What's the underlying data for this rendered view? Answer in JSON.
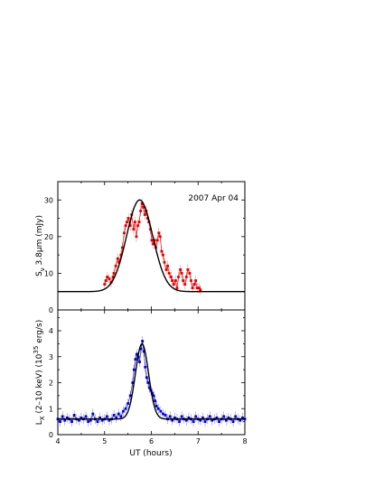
{
  "chart_data": [
    {
      "type": "line",
      "annotation": "2007 Apr 04",
      "ylabel_main": "S",
      "ylabel_sub": "ν",
      "ylabel_rest": " 3.8μm (mJy)",
      "xlabel": "",
      "xlim": [
        4,
        8
      ],
      "ylim": [
        0,
        35
      ],
      "y_ticks": [
        "0",
        "10",
        "20",
        "30"
      ],
      "grid": false,
      "series": [
        {
          "color": "#e00000",
          "marker": "square",
          "x": [
            5.0,
            5.03,
            5.06,
            5.1,
            5.14,
            5.18,
            5.2,
            5.24,
            5.28,
            5.31,
            5.35,
            5.38,
            5.42,
            5.45,
            5.48,
            5.51,
            5.55,
            5.58,
            5.62,
            5.65,
            5.68,
            5.71,
            5.74,
            5.77,
            5.8,
            5.83,
            5.86,
            5.89,
            5.92,
            5.95,
            5.98,
            6.01,
            6.04,
            6.07,
            6.1,
            6.13,
            6.16,
            6.19,
            6.22,
            6.25,
            6.28,
            6.32,
            6.35,
            6.38,
            6.42,
            6.45,
            6.48,
            6.52,
            6.55,
            6.58,
            6.62,
            6.65,
            6.68,
            6.72,
            6.75,
            6.78,
            6.82,
            6.85,
            6.88,
            6.92,
            6.95,
            6.98,
            7.02,
            7.05
          ],
          "y": [
            7,
            8,
            9,
            8.5,
            7.5,
            9,
            10,
            12,
            14,
            13,
            15,
            17,
            21,
            23,
            24,
            25,
            23,
            26,
            22,
            24,
            20,
            23,
            24,
            27,
            29,
            28,
            26,
            27,
            25,
            24,
            22,
            19,
            18,
            19,
            17,
            19,
            21,
            20,
            16,
            15,
            13,
            11,
            12,
            10,
            9,
            8,
            7,
            8,
            6,
            9,
            11,
            10,
            8,
            7,
            9,
            11,
            10,
            8,
            6,
            7,
            8,
            6,
            6,
            5.5
          ]
        },
        {
          "color": "#000000",
          "marker": "none",
          "function": "gaussian",
          "baseline": 5,
          "peak": 30,
          "center": 5.75,
          "sigma": 0.28
        }
      ]
    },
    {
      "type": "line",
      "annotation": "",
      "ylabel_main": "L",
      "ylabel_sub": "X",
      "ylabel_rest": " (2–10 keV)  (10",
      "ylabel_sup": "35",
      "ylabel_end": " erg/s)",
      "xlabel": "UT (hours)",
      "xlim": [
        4,
        8
      ],
      "ylim": [
        0,
        4.8
      ],
      "x_ticks": [
        "4",
        "5",
        "6",
        "7",
        "8"
      ],
      "y_ticks": [
        "0",
        "1",
        "2",
        "3",
        "4"
      ],
      "grid": false,
      "series": [
        {
          "color": "#0000cc",
          "marker": "square",
          "x": [
            4.0,
            4.05,
            4.1,
            4.15,
            4.2,
            4.25,
            4.3,
            4.35,
            4.4,
            4.45,
            4.5,
            4.55,
            4.6,
            4.65,
            4.7,
            4.75,
            4.8,
            4.85,
            4.9,
            4.95,
            5.0,
            5.05,
            5.1,
            5.15,
            5.2,
            5.25,
            5.3,
            5.35,
            5.4,
            5.45,
            5.5,
            5.55,
            5.6,
            5.63,
            5.66,
            5.69,
            5.72,
            5.75,
            5.78,
            5.81,
            5.84,
            5.87,
            5.9,
            5.93,
            5.96,
            5.99,
            6.02,
            6.05,
            6.08,
            6.11,
            6.15,
            6.2,
            6.25,
            6.3,
            6.35,
            6.4,
            6.45,
            6.5,
            6.55,
            6.6,
            6.65,
            6.7,
            6.75,
            6.8,
            6.85,
            6.9,
            6.95,
            7.0,
            7.05,
            7.1,
            7.15,
            7.2,
            7.25,
            7.3,
            7.35,
            7.4,
            7.45,
            7.5,
            7.55,
            7.6,
            7.65,
            7.7,
            7.75,
            7.8,
            7.85,
            7.9,
            7.95,
            8.0
          ],
          "y": [
            0.6,
            0.5,
            0.7,
            0.55,
            0.65,
            0.6,
            0.5,
            0.75,
            0.6,
            0.55,
            0.65,
            0.6,
            0.7,
            0.5,
            0.55,
            0.8,
            0.6,
            0.5,
            0.65,
            0.55,
            0.6,
            0.7,
            0.55,
            0.6,
            0.75,
            0.65,
            0.8,
            0.7,
            0.9,
            1.0,
            1.2,
            1.5,
            2.0,
            2.5,
            2.9,
            3.1,
            3.0,
            2.8,
            3.3,
            3.6,
            3.2,
            2.6,
            2.2,
            2.0,
            1.8,
            1.7,
            1.6,
            1.5,
            1.3,
            1.1,
            1.0,
            0.9,
            0.8,
            0.75,
            0.6,
            0.7,
            0.55,
            0.65,
            0.6,
            0.5,
            0.7,
            0.6,
            0.55,
            0.65,
            0.6,
            0.5,
            0.7,
            0.6,
            0.55,
            0.65,
            0.5,
            0.6,
            0.7,
            0.55,
            0.6,
            0.65,
            0.5,
            0.6,
            0.7,
            0.55,
            0.65,
            0.6,
            0.5,
            0.7,
            0.6,
            0.55,
            0.65,
            0.6
          ]
        },
        {
          "color": "#000000",
          "marker": "none",
          "function": "gaussian",
          "baseline": 0.6,
          "peak": 3.5,
          "center": 5.8,
          "sigma": 0.14
        }
      ]
    }
  ]
}
